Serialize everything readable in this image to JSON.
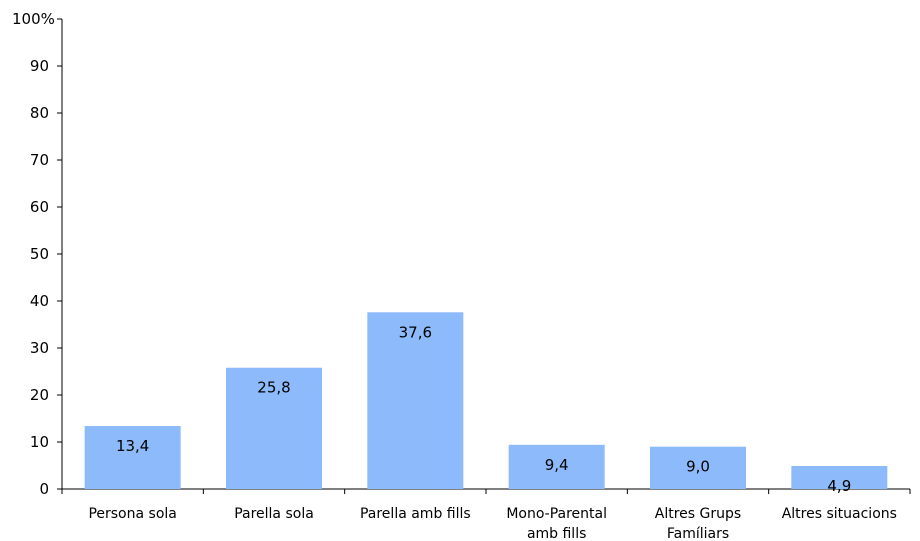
{
  "chart_data": {
    "type": "bar",
    "categories": [
      [
        "Persona sola"
      ],
      [
        "Parella sola"
      ],
      [
        "Parella amb fills"
      ],
      [
        "Mono-Parental",
        "amb fills"
      ],
      [
        "Altres Grups",
        "Famíliars"
      ],
      [
        "Altres situacions"
      ]
    ],
    "values": [
      13.4,
      25.8,
      37.6,
      9.4,
      9.0,
      4.9
    ],
    "data_labels": [
      "13,4",
      "25,8",
      "37,6",
      "9,4",
      "9,0",
      "4,9"
    ],
    "y_ticks": [
      "0",
      "10",
      "20",
      "30",
      "40",
      "50",
      "60",
      "70",
      "80",
      "90",
      "100%"
    ],
    "ylim": [
      0,
      100
    ],
    "bar_color": "#8CBAFA",
    "grid": false,
    "legend": "none"
  }
}
